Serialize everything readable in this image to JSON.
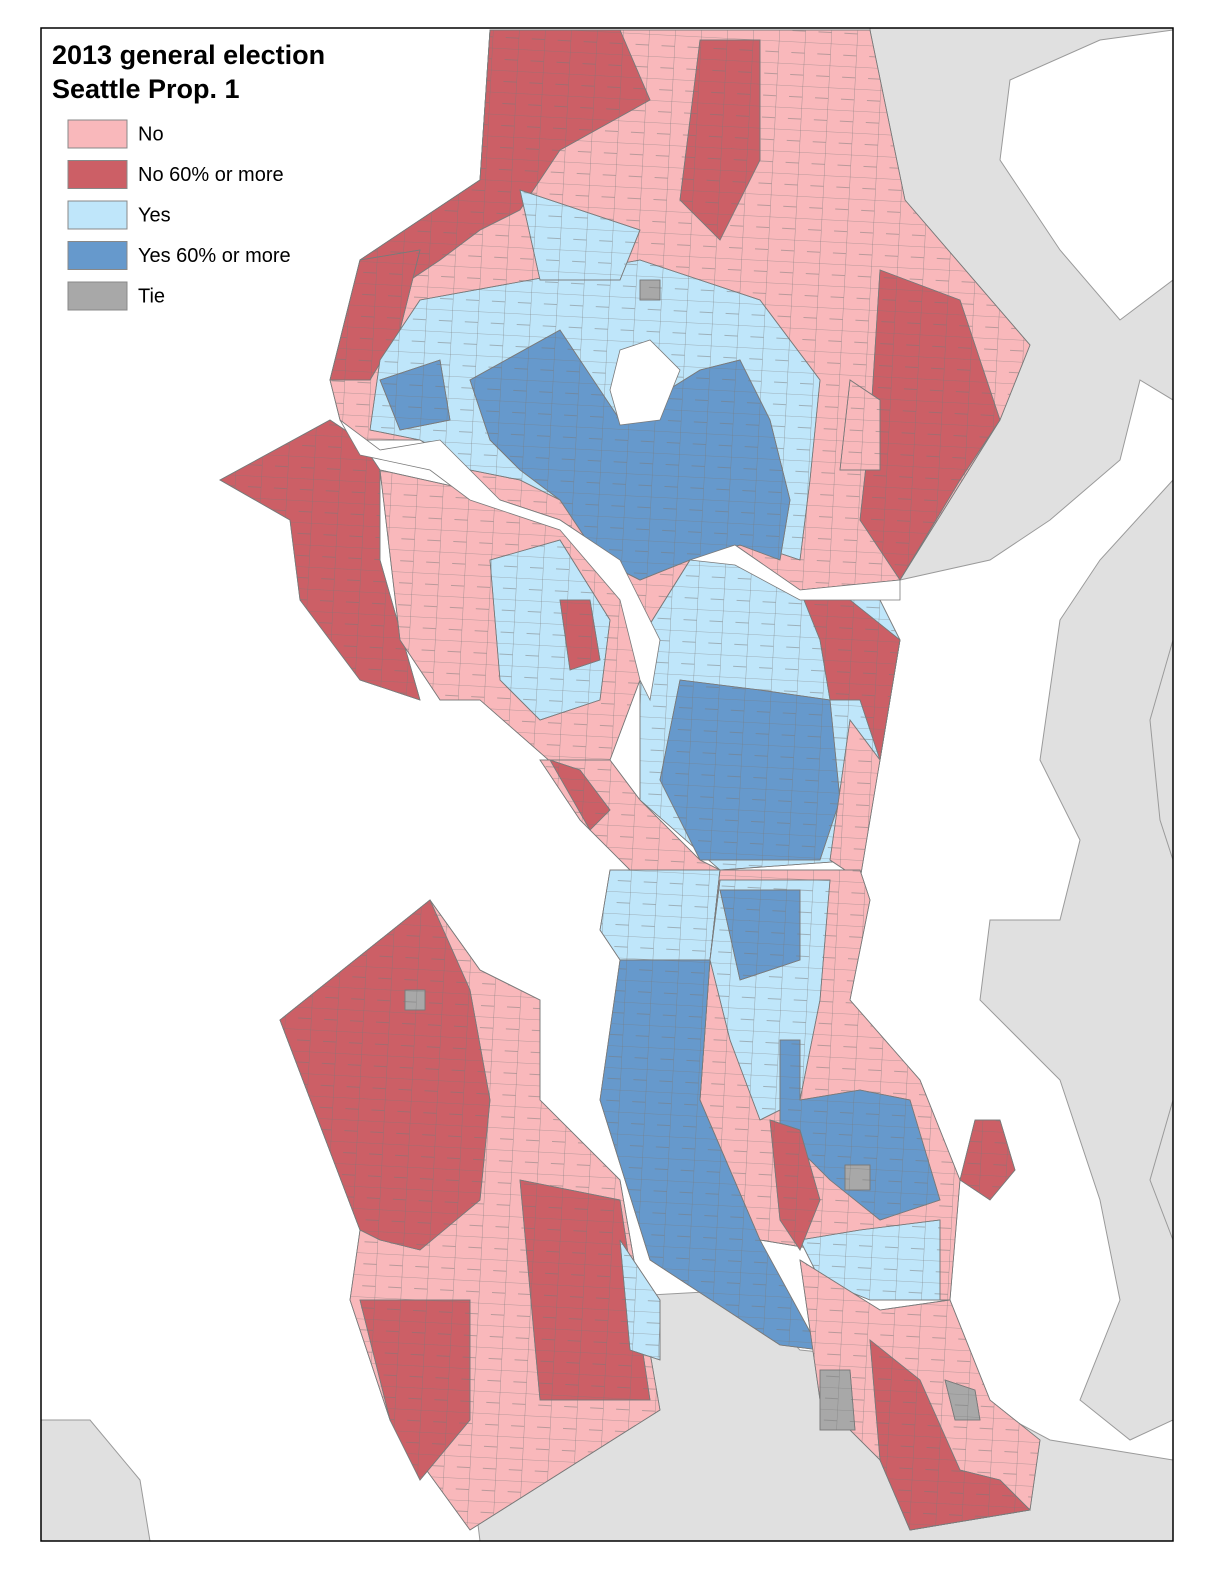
{
  "header": {
    "title_line1": "2013 general election",
    "title_line2": "Seattle Prop. 1"
  },
  "legend": [
    {
      "label": "No",
      "color": "#f9b8bb"
    },
    {
      "label": "No 60% or more",
      "color": "#cc5f66"
    },
    {
      "label": "Yes",
      "color": "#bfe6fa"
    },
    {
      "label": "Yes 60% or more",
      "color": "#6699cc"
    },
    {
      "label": "Tie",
      "color": "#a8a8a8"
    }
  ]
}
